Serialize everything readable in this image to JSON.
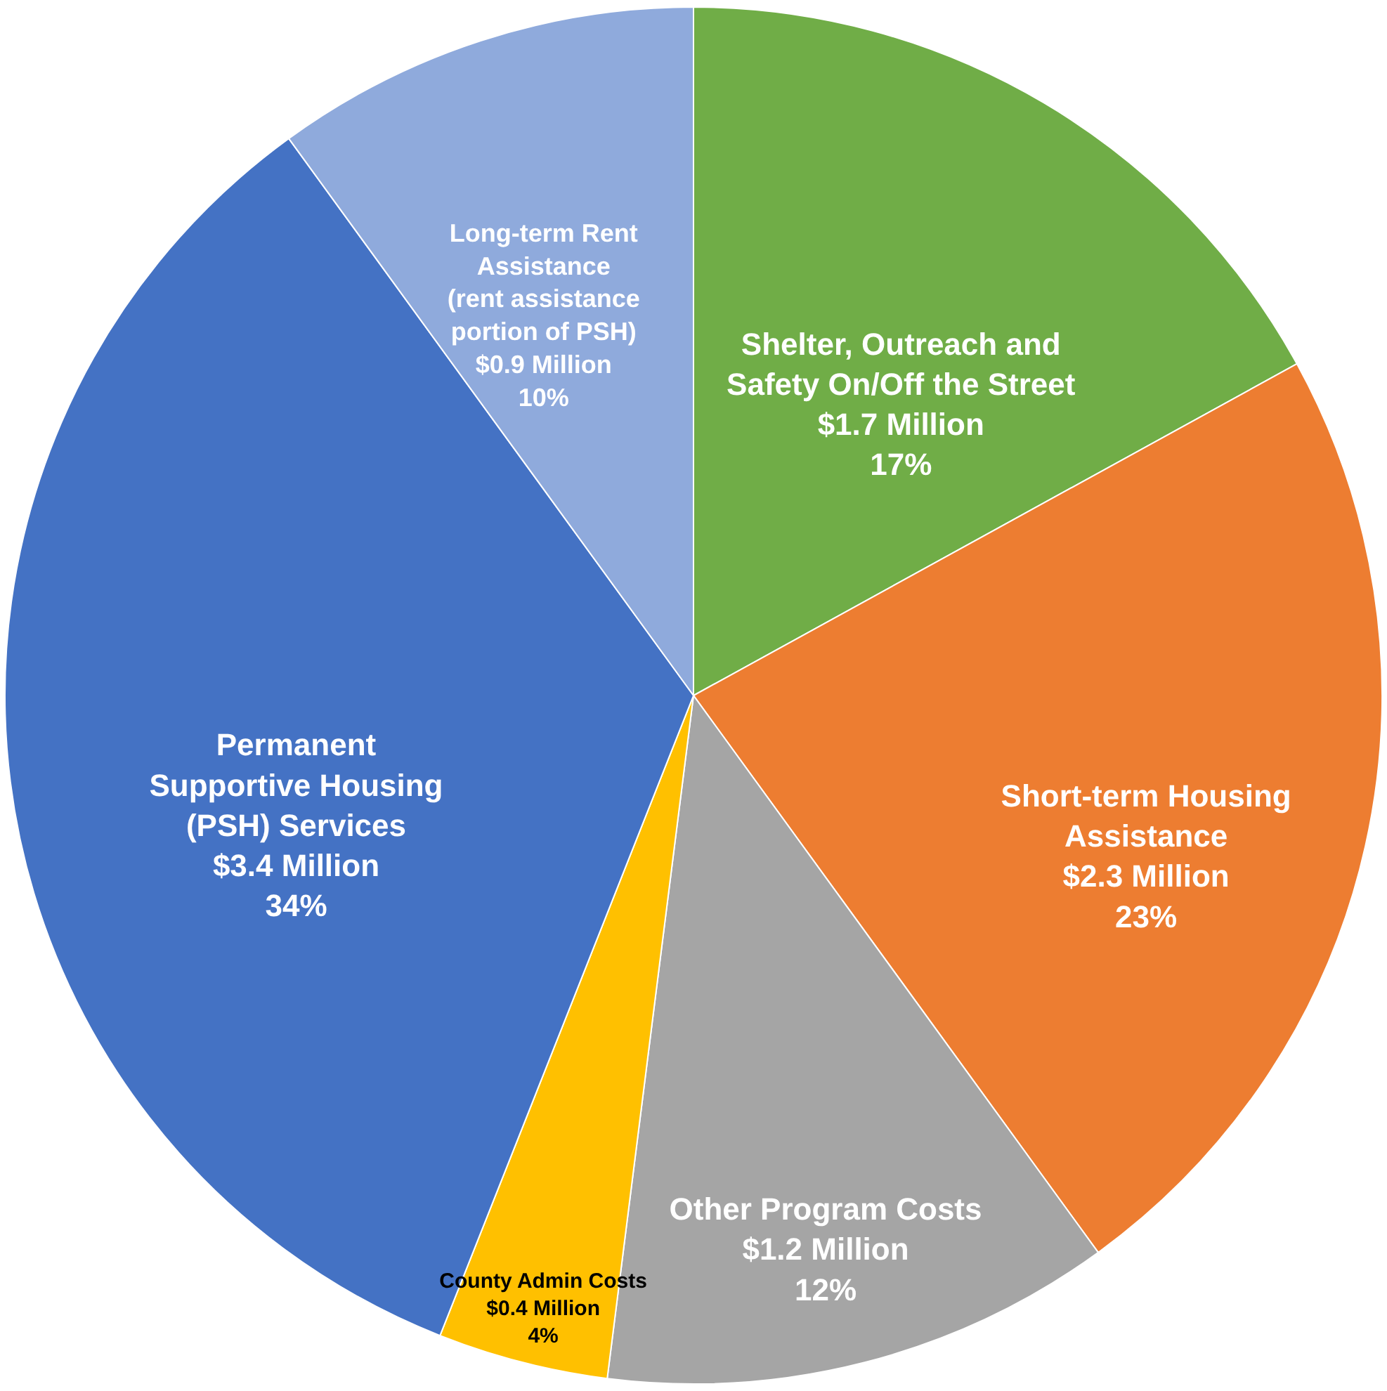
{
  "chart_data": {
    "type": "pie",
    "categories": [
      "Shelter, Outreach and\nSafety On/Off the Street",
      "Short-term Housing\nAssistance",
      "Other Program Costs",
      "County Admin Costs",
      "Permanent\nSupportive Housing\n(PSH) Services",
      "Long-term Rent\nAssistance\n(rent assistance\nportion of PSH)"
    ],
    "values": [
      17,
      23,
      12,
      4,
      34,
      10
    ],
    "value_labels": [
      "$1.7 Million\n17%",
      "$2.3 Million\n23%",
      "$1.2 Million\n12%",
      "$0.4 Million\n4%",
      "$3.4 Million\n34%",
      "$0.9 Million\n10%"
    ],
    "colors": [
      "#70ad47",
      "#ed7d31",
      "#a5a5a5",
      "#ffc000",
      "#4472c4",
      "#8faadc"
    ]
  }
}
